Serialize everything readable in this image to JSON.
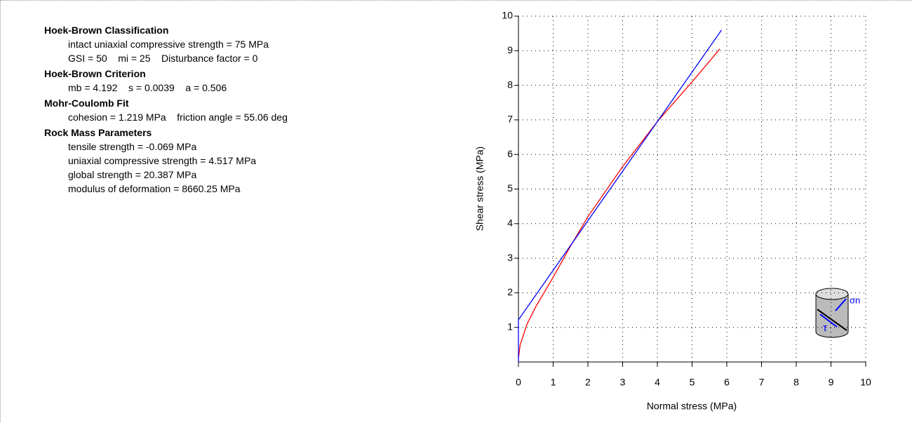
{
  "panel": {
    "sections": [
      {
        "heading": "Hoek-Brown Classification",
        "lines": [
          "intact uniaxial compressive strength = 75 MPa",
          "GSI = 50    mi = 25    Disturbance factor = 0"
        ]
      },
      {
        "heading": "Hoek-Brown Criterion",
        "lines": [
          "mb = 4.192    s = 0.0039    a = 0.506"
        ]
      },
      {
        "heading": "Mohr-Coulomb Fit",
        "lines": [
          "cohesion = 1.219 MPa    friction angle = 55.06 deg"
        ]
      },
      {
        "heading": "Rock Mass Parameters",
        "lines": [
          "tensile strength = -0.069 MPa",
          "uniaxial compressive strength = 4.517 MPa",
          "global strength = 20.387 MPa",
          "modulus of deformation = 8660.25 MPa"
        ]
      }
    ]
  },
  "chart_data": {
    "type": "line",
    "x_label": "Normal stress (MPa)",
    "y_label": "Shear stress (MPa)",
    "xlim": [
      0,
      10
    ],
    "ylim": [
      0,
      10
    ],
    "xticks": [
      0,
      1,
      2,
      3,
      4,
      5,
      6,
      7,
      8,
      9,
      10
    ],
    "yticks": [
      1,
      2,
      3,
      4,
      5,
      6,
      7,
      8,
      9,
      10
    ],
    "grid": true,
    "series": [
      {
        "color": "#ff0000",
        "x": [
          0,
          0.05,
          0.25,
          0.5,
          1,
          1.5,
          2,
          3,
          4,
          5,
          5.8
        ],
        "values": [
          0.1,
          0.5,
          1.1,
          1.6,
          2.45,
          3.35,
          4.2,
          5.65,
          6.95,
          8.1,
          9.05
        ]
      },
      {
        "color": "#0000ff",
        "x": [
          0,
          0,
          5.85
        ],
        "values": [
          0,
          1.219,
          9.6
        ]
      }
    ],
    "annotations": [
      "σn",
      "τ"
    ]
  }
}
